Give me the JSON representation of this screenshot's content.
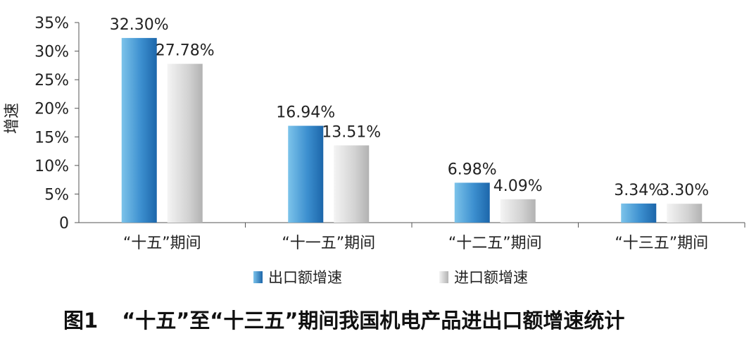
{
  "chart_data": {
    "type": "bar",
    "categories": [
      "“十五”期间",
      "“十一五”期间",
      "“十二五”期间",
      "“十三五”期间"
    ],
    "series": [
      {
        "name": "出口额增速",
        "values": [
          32.3,
          16.94,
          6.98,
          3.34
        ],
        "labels": [
          "32.30%",
          "16.94%",
          "6.98%",
          "3.34%"
        ]
      },
      {
        "name": "进口额增速",
        "values": [
          27.78,
          13.51,
          4.09,
          3.3
        ],
        "labels": [
          "27.78%",
          "13.51%",
          "4.09%",
          "3.30%"
        ]
      }
    ],
    "ylabel": "增速",
    "ylim": [
      0,
      35
    ],
    "yticks": [
      0,
      5,
      10,
      15,
      20,
      25,
      30,
      35
    ],
    "ytick_labels": [
      "0",
      "5%",
      "10%",
      "15%",
      "20%",
      "25%",
      "30%",
      "35%"
    ],
    "grid": false,
    "legend_position": "bottom"
  },
  "legend": {
    "export_label": "出口额增速",
    "import_label": "进口额增速"
  },
  "caption": {
    "number": "图1",
    "text": "“十五”至“十三五”期间我国机电产品进出口额增速统计"
  },
  "colors": {
    "export_dark": "#1f6fb2",
    "export_light": "#6fb6e3",
    "import_dark": "#b5b5b5",
    "import_light": "#efefef",
    "axis": "#555555"
  }
}
